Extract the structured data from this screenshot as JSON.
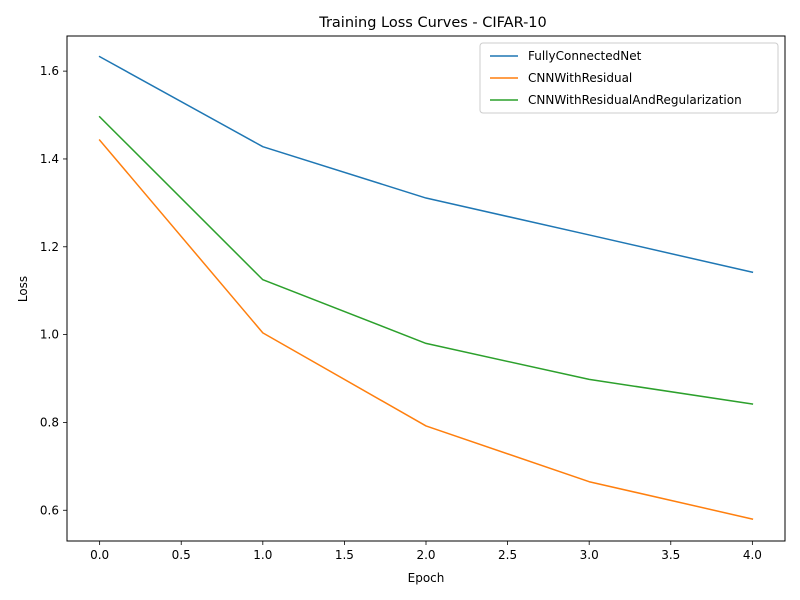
{
  "chart_data": {
    "type": "line",
    "title": "Training Loss Curves - CIFAR-10",
    "xlabel": "Epoch",
    "ylabel": "Loss",
    "x": [
      0,
      1,
      2,
      3,
      4
    ],
    "xlim": [
      -0.2,
      4.2
    ],
    "ylim": [
      0.53,
      1.68
    ],
    "xticks": [
      "0.0",
      "0.5",
      "1.0",
      "1.5",
      "2.0",
      "2.5",
      "3.0",
      "3.5",
      "4.0"
    ],
    "yticks": [
      "0.6",
      "0.8",
      "1.0",
      "1.2",
      "1.4",
      "1.6"
    ],
    "grid": false,
    "legend_position": "top-right",
    "series": [
      {
        "name": "FullyConnectedNet",
        "color": "#1f77b4",
        "values": [
          1.633,
          1.428,
          1.311,
          1.227,
          1.142
        ]
      },
      {
        "name": "CNNWithResidual",
        "color": "#ff7f0e",
        "values": [
          1.443,
          1.004,
          0.792,
          0.665,
          0.58
        ]
      },
      {
        "name": "CNNWithResidualAndRegularization",
        "color": "#2ca02c",
        "values": [
          1.496,
          1.125,
          0.98,
          0.898,
          0.842
        ]
      }
    ]
  }
}
